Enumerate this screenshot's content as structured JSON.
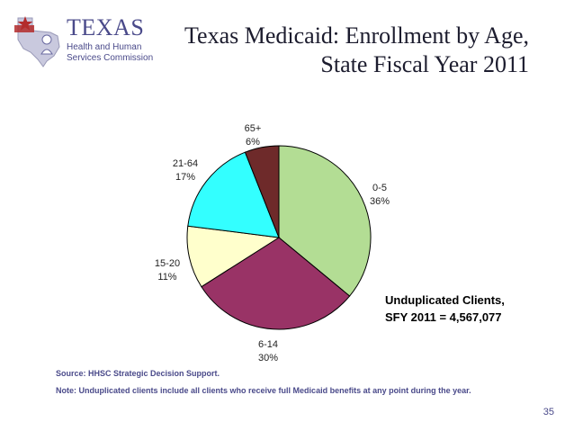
{
  "logo": {
    "wordmark": "TEXAS",
    "line1": "Health and Human",
    "line2": "Services Commission"
  },
  "title": {
    "line1": "Texas Medicaid: Enrollment by Age,",
    "line2": "State Fiscal Year 2011"
  },
  "summary": {
    "line1": "Unduplicated Clients,",
    "line2": "SFY 2011 = 4,567,077"
  },
  "source": "Source: HHSC Strategic Decision Support.",
  "note": "Note: Unduplicated clients include all clients who receive full Medicaid benefits at any point during the year.",
  "page_number": "35",
  "chart_data": {
    "type": "pie",
    "title": "Texas Medicaid: Enrollment by Age, State Fiscal Year 2011",
    "slices": [
      {
        "label": "0-5",
        "value": 36,
        "display": "36%",
        "color": "#b3dd94"
      },
      {
        "label": "6-14",
        "value": 30,
        "display": "30%",
        "color": "#993366"
      },
      {
        "label": "15-20",
        "value": 11,
        "display": "11%",
        "color": "#ffffcc"
      },
      {
        "label": "21-64",
        "value": 17,
        "display": "17%",
        "color": "#33ffff"
      },
      {
        "label": "65+",
        "value": 6,
        "display": "6%",
        "color": "#6e2a2a"
      }
    ]
  }
}
